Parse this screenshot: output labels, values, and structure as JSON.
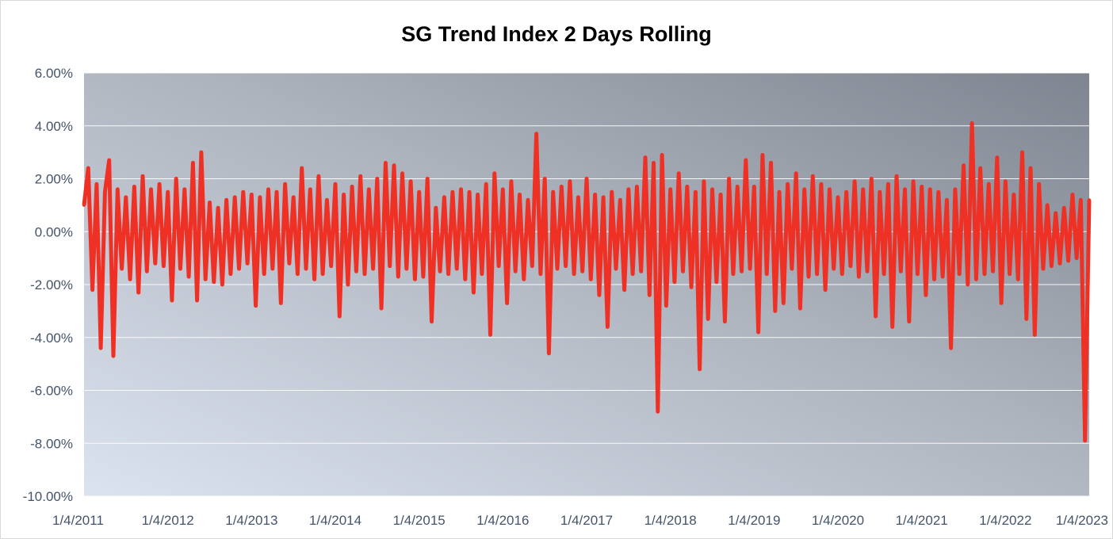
{
  "chart_data": {
    "type": "line",
    "title": "SG Trend Index 2 Days Rolling",
    "xlabel": "",
    "ylabel": "",
    "ylim": [
      -0.1,
      0.06
    ],
    "y_ticks": [
      {
        "value": 0.06,
        "label": "6.00%"
      },
      {
        "value": 0.04,
        "label": "4.00%"
      },
      {
        "value": 0.02,
        "label": "2.00%"
      },
      {
        "value": 0.0,
        "label": "0.00%"
      },
      {
        "value": -0.02,
        "label": "-2.00%"
      },
      {
        "value": -0.04,
        "label": "-4.00%"
      },
      {
        "value": -0.06,
        "label": "-6.00%"
      },
      {
        "value": -0.08,
        "label": "-8.00%"
      },
      {
        "value": -0.1,
        "label": "-10.00%"
      }
    ],
    "x_ticks": [
      {
        "value": 2011.0,
        "label": "1/4/2011"
      },
      {
        "value": 2012.0,
        "label": "1/4/2012"
      },
      {
        "value": 2013.0,
        "label": "1/4/2013"
      },
      {
        "value": 2014.0,
        "label": "1/4/2014"
      },
      {
        "value": 2015.0,
        "label": "1/4/2015"
      },
      {
        "value": 2016.0,
        "label": "1/4/2016"
      },
      {
        "value": 2017.0,
        "label": "1/4/2017"
      },
      {
        "value": 2018.0,
        "label": "1/4/2018"
      },
      {
        "value": 2019.0,
        "label": "1/4/2019"
      },
      {
        "value": 2020.0,
        "label": "1/4/2020"
      },
      {
        "value": 2021.0,
        "label": "1/4/2021"
      },
      {
        "value": 2022.0,
        "label": "1/4/2022"
      },
      {
        "value": 2023.0,
        "label": "1/4/2023"
      }
    ],
    "xlim": [
      2011.0,
      2023.0
    ],
    "grid": true,
    "line_color": "#ee3124",
    "series": [
      {
        "x": [
          2011.0,
          2011.05,
          2011.1,
          2011.15,
          2011.2,
          2011.25,
          2011.3,
          2011.35,
          2011.4,
          2011.45,
          2011.5,
          2011.55,
          2011.6,
          2011.65,
          2011.7,
          2011.75,
          2011.8,
          2011.85,
          2011.9,
          2011.95,
          2012.0,
          2012.05,
          2012.1,
          2012.15,
          2012.2,
          2012.25,
          2012.3,
          2012.35,
          2012.4,
          2012.45,
          2012.5,
          2012.55,
          2012.6,
          2012.65,
          2012.7,
          2012.75,
          2012.8,
          2012.85,
          2012.9,
          2012.95,
          2013.0,
          2013.05,
          2013.1,
          2013.15,
          2013.2,
          2013.25,
          2013.3,
          2013.35,
          2013.4,
          2013.45,
          2013.5,
          2013.55,
          2013.6,
          2013.65,
          2013.7,
          2013.75,
          2013.8,
          2013.85,
          2013.9,
          2013.95,
          2014.0,
          2014.05,
          2014.1,
          2014.15,
          2014.2,
          2014.25,
          2014.3,
          2014.35,
          2014.4,
          2014.45,
          2014.5,
          2014.55,
          2014.6,
          2014.65,
          2014.7,
          2014.75,
          2014.8,
          2014.85,
          2014.9,
          2014.95,
          2015.0,
          2015.05,
          2015.1,
          2015.15,
          2015.2,
          2015.25,
          2015.3,
          2015.35,
          2015.4,
          2015.45,
          2015.5,
          2015.55,
          2015.6,
          2015.65,
          2015.7,
          2015.75,
          2015.8,
          2015.85,
          2015.9,
          2015.95,
          2016.0,
          2016.05,
          2016.1,
          2016.15,
          2016.2,
          2016.25,
          2016.3,
          2016.35,
          2016.4,
          2016.45,
          2016.5,
          2016.55,
          2016.6,
          2016.65,
          2016.7,
          2016.75,
          2016.8,
          2016.85,
          2016.9,
          2016.95,
          2017.0,
          2017.05,
          2017.1,
          2017.15,
          2017.2,
          2017.25,
          2017.3,
          2017.35,
          2017.4,
          2017.45,
          2017.5,
          2017.55,
          2017.6,
          2017.65,
          2017.7,
          2017.75,
          2017.8,
          2017.85,
          2017.9,
          2017.95,
          2018.0,
          2018.05,
          2018.1,
          2018.15,
          2018.2,
          2018.25,
          2018.3,
          2018.35,
          2018.4,
          2018.45,
          2018.5,
          2018.55,
          2018.6,
          2018.65,
          2018.7,
          2018.75,
          2018.8,
          2018.85,
          2018.9,
          2018.95,
          2019.0,
          2019.05,
          2019.1,
          2019.15,
          2019.2,
          2019.25,
          2019.3,
          2019.35,
          2019.4,
          2019.45,
          2019.5,
          2019.55,
          2019.6,
          2019.65,
          2019.7,
          2019.75,
          2019.8,
          2019.85,
          2019.9,
          2019.95,
          2020.0,
          2020.05,
          2020.1,
          2020.15,
          2020.2,
          2020.25,
          2020.3,
          2020.35,
          2020.4,
          2020.45,
          2020.5,
          2020.55,
          2020.6,
          2020.65,
          2020.7,
          2020.75,
          2020.8,
          2020.85,
          2020.9,
          2020.95,
          2021.0,
          2021.05,
          2021.1,
          2021.15,
          2021.2,
          2021.25,
          2021.3,
          2021.35,
          2021.4,
          2021.45,
          2021.5,
          2021.55,
          2021.6,
          2021.65,
          2021.7,
          2021.75,
          2021.8,
          2021.85,
          2021.9,
          2021.95,
          2022.0,
          2022.05,
          2022.1,
          2022.15,
          2022.2,
          2022.25,
          2022.3,
          2022.35,
          2022.4,
          2022.45,
          2022.5,
          2022.55,
          2022.6,
          2022.65,
          2022.7,
          2022.75,
          2022.8,
          2022.85,
          2022.9,
          2022.95,
          2023.0
        ],
        "y": [
          0.01,
          0.024,
          -0.022,
          0.018,
          -0.044,
          0.015,
          0.027,
          -0.047,
          0.016,
          -0.014,
          0.013,
          -0.018,
          0.017,
          -0.023,
          0.021,
          -0.015,
          0.016,
          -0.012,
          0.018,
          -0.013,
          0.015,
          -0.026,
          0.02,
          -0.014,
          0.016,
          -0.017,
          0.026,
          -0.026,
          0.03,
          -0.018,
          0.011,
          -0.019,
          0.009,
          -0.02,
          0.012,
          -0.016,
          0.013,
          -0.014,
          0.015,
          -0.012,
          0.014,
          -0.028,
          0.013,
          -0.016,
          0.016,
          -0.014,
          0.015,
          -0.027,
          0.018,
          -0.012,
          0.013,
          -0.016,
          0.024,
          -0.014,
          0.016,
          -0.018,
          0.021,
          -0.016,
          0.012,
          -0.013,
          0.018,
          -0.032,
          0.014,
          -0.02,
          0.017,
          -0.015,
          0.021,
          -0.016,
          0.016,
          -0.014,
          0.02,
          -0.029,
          0.026,
          -0.013,
          0.025,
          -0.017,
          0.022,
          -0.014,
          0.019,
          -0.018,
          0.015,
          -0.017,
          0.02,
          -0.034,
          0.009,
          -0.015,
          0.013,
          -0.016,
          0.015,
          -0.014,
          0.016,
          -0.018,
          0.015,
          -0.023,
          0.014,
          -0.016,
          0.018,
          -0.039,
          0.022,
          -0.013,
          0.016,
          -0.027,
          0.019,
          -0.015,
          0.014,
          -0.018,
          0.012,
          -0.013,
          0.037,
          -0.016,
          0.02,
          -0.046,
          0.015,
          -0.014,
          0.017,
          -0.013,
          0.019,
          -0.016,
          0.013,
          -0.015,
          0.02,
          -0.018,
          0.014,
          -0.024,
          0.013,
          -0.036,
          0.015,
          -0.014,
          0.012,
          -0.022,
          0.016,
          -0.016,
          0.017,
          -0.015,
          0.028,
          -0.024,
          0.026,
          -0.068,
          0.029,
          -0.028,
          0.016,
          -0.019,
          0.022,
          -0.015,
          0.017,
          -0.021,
          0.015,
          -0.052,
          0.019,
          -0.033,
          0.016,
          -0.019,
          0.014,
          -0.034,
          0.02,
          -0.016,
          0.017,
          -0.015,
          0.027,
          -0.014,
          0.017,
          -0.038,
          0.029,
          -0.016,
          0.026,
          -0.03,
          0.015,
          -0.027,
          0.018,
          -0.014,
          0.022,
          -0.029,
          0.016,
          -0.017,
          0.021,
          -0.016,
          0.018,
          -0.022,
          0.016,
          -0.014,
          0.013,
          -0.016,
          0.015,
          -0.013,
          0.019,
          -0.017,
          0.016,
          -0.015,
          0.02,
          -0.032,
          0.015,
          -0.016,
          0.018,
          -0.036,
          0.021,
          -0.015,
          0.016,
          -0.034,
          0.019,
          -0.016,
          0.017,
          -0.024,
          0.016,
          -0.018,
          0.015,
          -0.017,
          0.012,
          -0.044,
          0.016,
          -0.016,
          0.025,
          -0.02,
          0.041,
          -0.018,
          0.024,
          -0.016,
          0.018,
          -0.015,
          0.028,
          -0.027,
          0.019,
          -0.016,
          0.014,
          -0.018,
          0.03,
          -0.033,
          0.024,
          -0.039,
          0.018,
          -0.014,
          0.01,
          -0.013,
          0.007,
          -0.012,
          0.009,
          -0.011,
          0.014,
          -0.01,
          0.012,
          -0.079,
          0.012
        ]
      }
    ]
  }
}
